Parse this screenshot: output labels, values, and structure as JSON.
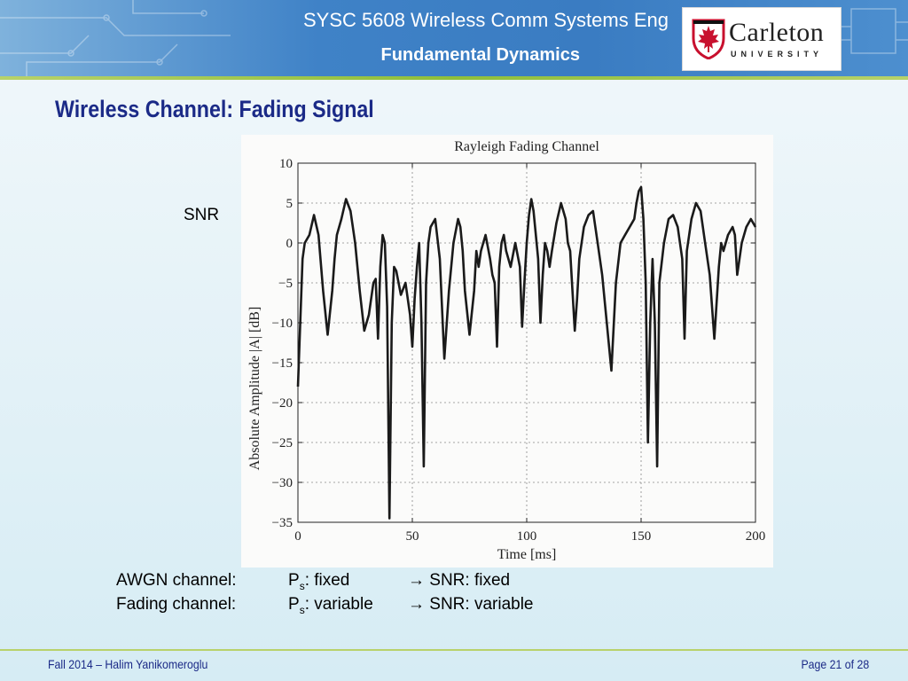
{
  "header": {
    "course_title": "SYSC 5608 Wireless Comm Systems Eng",
    "lecture_title": "Fundamental Dynamics",
    "logo": {
      "name": "Carleton",
      "subtitle": "UNIVERSITY",
      "icon": "maple-leaf-shield-icon"
    }
  },
  "slide": {
    "title": "Wireless Channel: Fading Signal",
    "snr_label": "SNR"
  },
  "chart_data": {
    "type": "line",
    "title": "Rayleigh Fading Channel",
    "xlabel": "Time [ms]",
    "ylabel": "Absolute Amplitude |A| [dB]",
    "xlim": [
      0,
      200
    ],
    "ylim": [
      -35,
      10
    ],
    "xticks": [
      "0",
      "50",
      "100",
      "150",
      "200"
    ],
    "yticks": [
      "10",
      "5",
      "0",
      "−5",
      "−10",
      "−15",
      "−20",
      "−25",
      "−30",
      "−35"
    ],
    "grid": true,
    "line_color": "#1a1a1a",
    "series": [
      {
        "x": [
          0,
          1,
          2,
          3,
          5,
          7,
          9,
          11,
          13,
          15,
          16,
          17,
          19,
          21,
          23,
          25,
          27,
          29,
          31,
          33,
          34,
          35,
          36,
          37,
          38,
          39,
          40,
          41,
          42,
          43,
          45,
          47,
          49,
          50,
          51,
          52,
          53,
          54,
          55,
          56,
          57,
          58,
          60,
          62,
          64,
          66,
          68,
          70,
          71,
          72,
          73,
          75,
          77,
          78,
          79,
          80,
          82,
          84,
          85,
          86,
          87,
          88,
          89,
          90,
          91,
          93,
          95,
          97,
          98,
          99,
          100,
          101,
          102,
          103,
          105,
          106,
          107,
          108,
          109,
          110,
          111,
          113,
          115,
          117,
          118,
          119,
          120,
          121,
          122,
          123,
          125,
          127,
          129,
          131,
          133,
          135,
          137,
          139,
          141,
          143,
          145,
          147,
          148,
          149,
          150,
          151,
          152,
          153,
          154,
          155,
          156,
          157,
          158,
          160,
          162,
          164,
          166,
          168,
          169,
          170,
          172,
          174,
          176,
          178,
          180,
          182,
          184,
          185,
          186,
          188,
          190,
          191,
          192,
          194,
          196,
          198,
          200
        ],
        "y": [
          -18,
          -10,
          -2,
          0,
          1,
          3.5,
          1,
          -6,
          -11.5,
          -6,
          -2,
          1,
          3,
          5.5,
          4,
          0,
          -6,
          -11,
          -9,
          -5,
          -4.5,
          -12,
          -3,
          1,
          0,
          -8,
          -34.5,
          -10,
          -3,
          -3.5,
          -6.5,
          -5,
          -9,
          -13,
          -7,
          -3,
          0,
          -10,
          -28,
          -5,
          0,
          2,
          3,
          -2,
          -14.5,
          -6,
          0,
          3,
          2,
          -1,
          -6,
          -11.5,
          -6,
          -1,
          -3,
          -1,
          1,
          -2,
          -4,
          -5,
          -13,
          -3,
          0,
          1,
          -1,
          -3,
          0,
          -3,
          -10.5,
          -5,
          0,
          3.5,
          5.5,
          4,
          -2,
          -10,
          -4,
          0,
          -1,
          -3,
          -1,
          2.5,
          5,
          3,
          0,
          -1,
          -6,
          -11,
          -7,
          -2,
          2,
          3.5,
          4,
          0,
          -4,
          -10,
          -16,
          -5,
          0,
          1,
          2,
          3,
          5,
          6.5,
          7,
          3,
          -5,
          -25,
          -10,
          -2,
          -10,
          -28,
          -5,
          0,
          3,
          3.5,
          2,
          -2,
          -12,
          -1,
          3,
          5,
          4,
          0,
          -4,
          -12,
          -3,
          0,
          -1,
          1,
          2,
          1,
          -4,
          0,
          2,
          3,
          2
        ]
      }
    ]
  },
  "notes": {
    "awgn": {
      "label": "AWGN channel:",
      "ps_base": "P",
      "ps_sub": "s",
      "ps_suffix": ": fixed",
      "result": "→ SNR: fixed"
    },
    "fading": {
      "label": "Fading channel:",
      "ps_base": "P",
      "ps_sub": "s",
      "ps_suffix": ": variable",
      "result": "→ SNR: variable"
    }
  },
  "footer": {
    "left": "Fall 2014 – Halim Yanikomeroglu",
    "right": "Page 21 of 28"
  }
}
